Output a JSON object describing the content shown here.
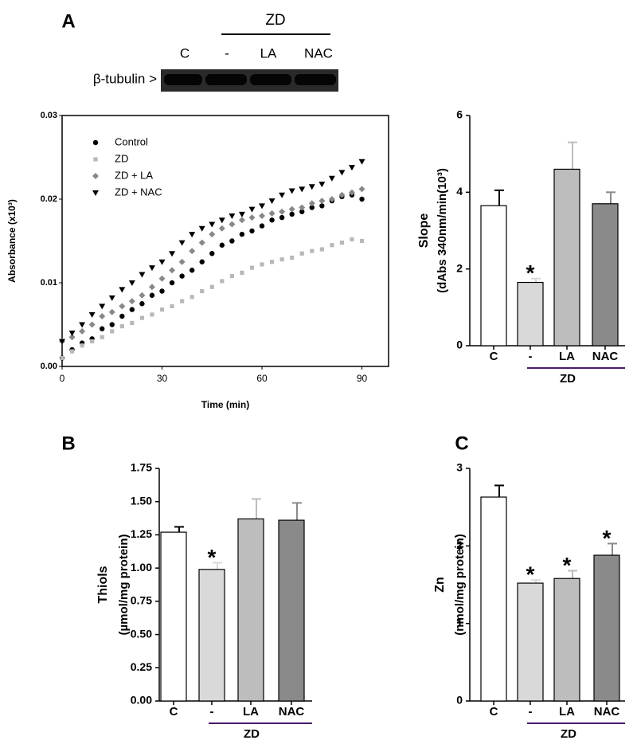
{
  "blot": {
    "group": "ZD",
    "lanes": [
      "C",
      "-",
      "LA",
      "NAC"
    ],
    "label": "β-tubulin >"
  },
  "chart_data": [
    {
      "type": "scatter",
      "panel": "A",
      "x_label": "Time (min)",
      "y_label": "Absorbance (x10³)",
      "x": [
        0,
        3,
        6,
        9,
        12,
        15,
        18,
        21,
        24,
        27,
        30,
        33,
        36,
        39,
        42,
        45,
        48,
        51,
        54,
        57,
        60,
        63,
        66,
        69,
        72,
        75,
        78,
        81,
        84,
        87,
        90
      ],
      "xlim": [
        0,
        98
      ],
      "xticks": [
        0,
        30,
        60,
        90
      ],
      "ylim": [
        0,
        0.03
      ],
      "yticks": [
        {
          "value": 0,
          "label": "0.00"
        },
        {
          "value": 0.01,
          "label": "0.01"
        },
        {
          "value": 0.02,
          "label": "0.02"
        },
        {
          "value": 0.03,
          "label": "0.03"
        }
      ],
      "series": [
        {
          "name": "Control",
          "color": "#000000",
          "marker": "circle",
          "values": [
            0.001,
            0.002,
            0.0028,
            0.0033,
            0.0045,
            0.005,
            0.006,
            0.0068,
            0.0075,
            0.0085,
            0.009,
            0.01,
            0.0108,
            0.0115,
            0.0125,
            0.0135,
            0.0145,
            0.015,
            0.0158,
            0.0162,
            0.0168,
            0.0175,
            0.0178,
            0.0182,
            0.0185,
            0.019,
            0.0192,
            0.0198,
            0.0203,
            0.0205,
            0.02
          ]
        },
        {
          "name": "ZD",
          "color": "#b8b8b8",
          "marker": "square",
          "values": [
            0.001,
            0.0018,
            0.0025,
            0.003,
            0.0035,
            0.0042,
            0.0048,
            0.0052,
            0.0058,
            0.0062,
            0.0068,
            0.0072,
            0.0078,
            0.0083,
            0.009,
            0.0095,
            0.0102,
            0.0108,
            0.0112,
            0.0118,
            0.0122,
            0.0125,
            0.0128,
            0.013,
            0.0135,
            0.0138,
            0.014,
            0.0145,
            0.0148,
            0.0152,
            0.015
          ]
        },
        {
          "name": "ZD + LA",
          "color": "#888888",
          "marker": "diamond",
          "values": [
            0.003,
            0.0035,
            0.0042,
            0.005,
            0.006,
            0.0065,
            0.0072,
            0.0078,
            0.0085,
            0.0095,
            0.0105,
            0.0115,
            0.0125,
            0.0138,
            0.0148,
            0.0158,
            0.0165,
            0.017,
            0.0175,
            0.0178,
            0.018,
            0.0183,
            0.0185,
            0.0188,
            0.019,
            0.0195,
            0.0198,
            0.02,
            0.0205,
            0.0208,
            0.0212
          ]
        },
        {
          "name": "ZD + NAC",
          "color": "#000000",
          "marker": "triangle-down",
          "values": [
            0.003,
            0.004,
            0.005,
            0.0062,
            0.0072,
            0.0082,
            0.0092,
            0.01,
            0.011,
            0.0118,
            0.0125,
            0.0135,
            0.0148,
            0.0158,
            0.0165,
            0.017,
            0.0175,
            0.018,
            0.0182,
            0.0188,
            0.0192,
            0.0198,
            0.0205,
            0.021,
            0.0212,
            0.0215,
            0.0218,
            0.0225,
            0.0232,
            0.0238,
            0.0245
          ]
        }
      ]
    },
    {
      "type": "bar",
      "y_label": "Slope",
      "y_sublabel": "(dAbs 340nm/min(10³)",
      "categories": [
        "C",
        "-",
        "LA",
        "NAC"
      ],
      "group_label": "ZD",
      "values": [
        3.65,
        1.65,
        4.6,
        3.7
      ],
      "errors": [
        0.4,
        0.1,
        0.7,
        0.3
      ],
      "markers": [
        null,
        "*",
        null,
        null
      ],
      "colors": [
        "#ffffff",
        "#d9d9d9",
        "#bdbdbd",
        "#8a8a8a"
      ],
      "ylim": [
        0,
        6
      ],
      "yticks": [
        0,
        2,
        4,
        6
      ]
    },
    {
      "type": "bar",
      "panel": "B",
      "y_label": "Thiols",
      "y_sublabel": "(µmol/mg protein)",
      "categories": [
        "C",
        "-",
        "LA",
        "NAC"
      ],
      "group_label": "ZD",
      "values": [
        1.27,
        0.99,
        1.37,
        1.36
      ],
      "errors": [
        0.04,
        0.05,
        0.15,
        0.13
      ],
      "markers": [
        null,
        "*",
        null,
        null
      ],
      "colors": [
        "#ffffff",
        "#d9d9d9",
        "#bdbdbd",
        "#8a8a8a"
      ],
      "ylim": [
        0,
        1.75
      ],
      "yticks": [
        {
          "value": 0,
          "label": "0.00"
        },
        {
          "value": 0.25,
          "label": "0.25"
        },
        {
          "value": 0.5,
          "label": "0.50"
        },
        {
          "value": 0.75,
          "label": "0.75"
        },
        {
          "value": 1,
          "label": "1.00"
        },
        {
          "value": 1.25,
          "label": "1.25"
        },
        {
          "value": 1.5,
          "label": "1.50"
        },
        1.75
      ]
    },
    {
      "type": "bar",
      "panel": "C",
      "y_label": "Zn",
      "y_sublabel": "(nmol/mg protein)",
      "categories": [
        "C",
        "-",
        "LA",
        "NAC"
      ],
      "group_label": "ZD",
      "values": [
        2.63,
        1.52,
        1.58,
        1.88
      ],
      "errors": [
        0.15,
        0.04,
        0.1,
        0.15
      ],
      "markers": [
        null,
        "*",
        "*",
        "*"
      ],
      "colors": [
        "#ffffff",
        "#d9d9d9",
        "#bdbdbd",
        "#8a8a8a"
      ],
      "ylim": [
        0,
        3
      ],
      "yticks": [
        0,
        1,
        2,
        3
      ]
    }
  ]
}
